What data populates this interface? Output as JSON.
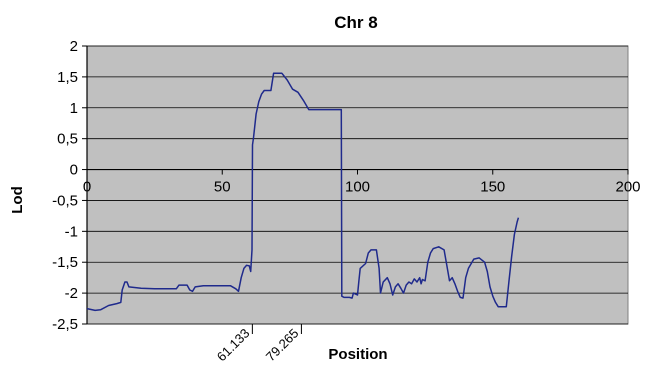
{
  "chart_data": {
    "type": "line",
    "title": "Chr 8",
    "xlabel": "Position",
    "ylabel": "Lod",
    "xlim": [
      0,
      200
    ],
    "ylim": [
      -2.5,
      2
    ],
    "x_ticks": [
      0,
      50,
      100,
      150,
      200
    ],
    "y_ticks": [
      2,
      1.5,
      1,
      0.5,
      0,
      -0.5,
      -1,
      -1.5,
      -2,
      -2.5
    ],
    "y_tick_labels": [
      "2",
      "1,5",
      "1",
      "0,5",
      "0",
      "-0,5",
      "-1",
      "-1,5",
      "-2",
      "-2,5"
    ],
    "grid": "horizontal",
    "legend": "none",
    "plot_background": "#c0c0c0",
    "line_color": "#1f2a8c",
    "markers": [
      {
        "label": "61.133",
        "x": 61.133
      },
      {
        "label": "79.265",
        "x": 79.265
      }
    ],
    "series": [
      {
        "points": [
          [
            0,
            -2.25
          ],
          [
            3,
            -2.28
          ],
          [
            5,
            -2.27
          ],
          [
            8,
            -2.2
          ],
          [
            11,
            -2.17
          ],
          [
            12.5,
            -2.15
          ],
          [
            13,
            -1.95
          ],
          [
            14,
            -1.82
          ],
          [
            14.8,
            -1.82
          ],
          [
            15.5,
            -1.9
          ],
          [
            20,
            -1.92
          ],
          [
            25,
            -1.93
          ],
          [
            30,
            -1.93
          ],
          [
            33,
            -1.93
          ],
          [
            34,
            -1.87
          ],
          [
            37,
            -1.87
          ],
          [
            38,
            -1.95
          ],
          [
            39,
            -1.97
          ],
          [
            40,
            -1.9
          ],
          [
            43,
            -1.88
          ],
          [
            49,
            -1.88
          ],
          [
            53,
            -1.88
          ],
          [
            55,
            -1.93
          ],
          [
            56,
            -1.97
          ],
          [
            57,
            -1.75
          ],
          [
            58,
            -1.6
          ],
          [
            59,
            -1.55
          ],
          [
            60,
            -1.56
          ],
          [
            60.5,
            -1.65
          ],
          [
            61,
            -1.3
          ],
          [
            61.2,
            0.4
          ],
          [
            61.5,
            0.5
          ],
          [
            62.5,
            0.9
          ],
          [
            63.5,
            1.1
          ],
          [
            64.5,
            1.22
          ],
          [
            65.5,
            1.28
          ],
          [
            68,
            1.28
          ],
          [
            69,
            1.56
          ],
          [
            72,
            1.56
          ],
          [
            74,
            1.45
          ],
          [
            76,
            1.3
          ],
          [
            78,
            1.25
          ],
          [
            80,
            1.12
          ],
          [
            82,
            0.97
          ],
          [
            94,
            0.97
          ],
          [
            94.2,
            -2.05
          ],
          [
            95,
            -2.07
          ],
          [
            97,
            -2.07
          ],
          [
            98,
            -2.08
          ],
          [
            98.5,
            -2.0
          ],
          [
            100,
            -2.03
          ],
          [
            100.5,
            -1.8
          ],
          [
            101,
            -1.6
          ],
          [
            103,
            -1.52
          ],
          [
            104,
            -1.35
          ],
          [
            105,
            -1.3
          ],
          [
            107,
            -1.3
          ],
          [
            108,
            -1.6
          ],
          [
            108.5,
            -2.0
          ],
          [
            109.5,
            -1.82
          ],
          [
            111,
            -1.75
          ],
          [
            112,
            -1.85
          ],
          [
            113,
            -2.03
          ],
          [
            114,
            -1.9
          ],
          [
            115,
            -1.85
          ],
          [
            116,
            -1.92
          ],
          [
            117,
            -2.0
          ],
          [
            118,
            -1.87
          ],
          [
            119,
            -1.82
          ],
          [
            120,
            -1.85
          ],
          [
            121,
            -1.77
          ],
          [
            122,
            -1.82
          ],
          [
            123,
            -1.75
          ],
          [
            123.5,
            -1.85
          ],
          [
            124,
            -1.78
          ],
          [
            125,
            -1.8
          ],
          [
            126,
            -1.5
          ],
          [
            127,
            -1.35
          ],
          [
            128,
            -1.28
          ],
          [
            130,
            -1.25
          ],
          [
            132,
            -1.3
          ],
          [
            133,
            -1.55
          ],
          [
            134,
            -1.8
          ],
          [
            135,
            -1.75
          ],
          [
            136,
            -1.85
          ],
          [
            137,
            -1.97
          ],
          [
            138,
            -2.07
          ],
          [
            139,
            -2.08
          ],
          [
            140,
            -1.75
          ],
          [
            141,
            -1.6
          ],
          [
            143,
            -1.45
          ],
          [
            145,
            -1.43
          ],
          [
            147,
            -1.5
          ],
          [
            148,
            -1.65
          ],
          [
            149,
            -1.9
          ],
          [
            150,
            -2.05
          ],
          [
            151,
            -2.15
          ],
          [
            152,
            -2.22
          ],
          [
            155,
            -2.22
          ],
          [
            156,
            -1.8
          ],
          [
            157,
            -1.4
          ],
          [
            158,
            -1.05
          ],
          [
            159,
            -0.85
          ],
          [
            159.5,
            -0.78
          ]
        ]
      }
    ]
  }
}
